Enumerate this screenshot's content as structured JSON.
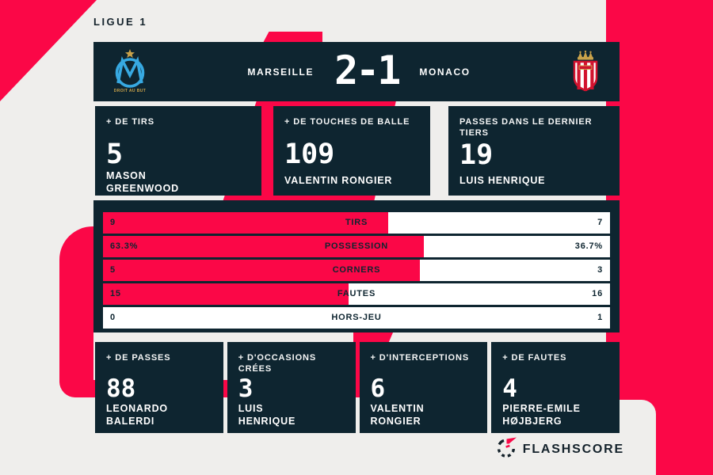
{
  "page": {
    "league": "LIGUE 1"
  },
  "header": {
    "home_team": "MARSEILLE",
    "away_team": "MONACO",
    "score": "2-1",
    "home_crest": "olympique-marseille-crest",
    "home_crest_motto": "DROIT AU BUT",
    "away_crest": "as-monaco-crest"
  },
  "top_stats": [
    {
      "label": "+ DE TIRS",
      "value": "5",
      "player": "MASON\nGREENWOOD"
    },
    {
      "label": "+ DE TOUCHES DE BALLE",
      "value": "109",
      "player": "VALENTIN RONGIER"
    },
    {
      "label": "PASSES DANS LE DERNIER TIERS",
      "value": "19",
      "player": "LUIS HENRIQUE"
    }
  ],
  "chart_data": {
    "type": "bar",
    "title": "Marseille 2-1 Monaco — match stats",
    "categories": [
      "TIRS",
      "POSSESSION",
      "CORNERS",
      "FAUTES",
      "HORS-JEU"
    ],
    "series": [
      {
        "name": "MARSEILLE",
        "values": [
          9,
          63.3,
          5,
          15,
          0
        ]
      },
      {
        "name": "MONACO",
        "values": [
          7,
          36.7,
          3,
          16,
          1
        ]
      }
    ]
  },
  "bars": [
    {
      "label": "TIRS",
      "home": "9",
      "away": "7",
      "home_pct": 56.25
    },
    {
      "label": "POSSESSION",
      "home": "63.3%",
      "away": "36.7%",
      "home_pct": 63.3
    },
    {
      "label": "CORNERS",
      "home": "5",
      "away": "3",
      "home_pct": 62.5
    },
    {
      "label": "FAUTES",
      "home": "15",
      "away": "16",
      "home_pct": 48.4
    },
    {
      "label": "HORS-JEU",
      "home": "0",
      "away": "1",
      "home_pct": 0
    }
  ],
  "bottom_stats": [
    {
      "label": "+ DE PASSES",
      "value": "88",
      "player": "LEONARDO\nBALERDI"
    },
    {
      "label": "+ D'OCCASIONS CRÉES",
      "value": "3",
      "player": "LUIS\nHENRIQUE"
    },
    {
      "label": "+ D'INTERCEPTIONS",
      "value": "6",
      "player": "VALENTIN\nRONGIER"
    },
    {
      "label": "+ DE FAUTES",
      "value": "4",
      "player": "PIERRE-EMILE\nHØJBJERG"
    }
  ],
  "footer": {
    "brand": "FLASHSCORE"
  },
  "colors": {
    "accent_pink": "#fb0747",
    "panel_navy": "#0e2530",
    "background_gray": "#efeeec",
    "om_blue": "#37a9e1",
    "monaco_red": "#d2122e",
    "crest_gold": "#c9a24a"
  }
}
